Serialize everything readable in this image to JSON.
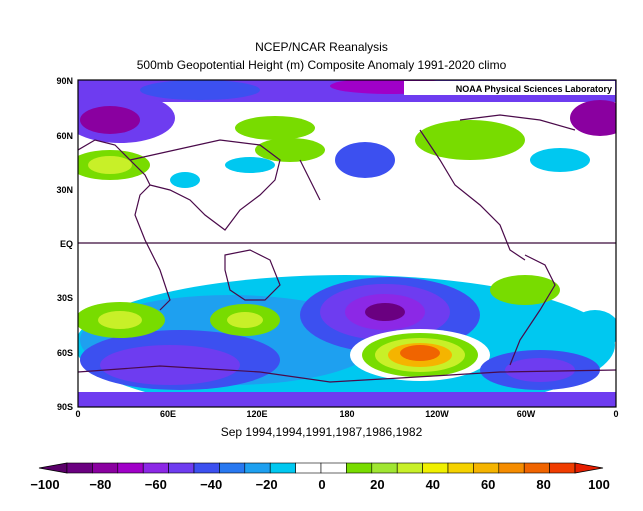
{
  "title_line1": "NCEP/NCAR Reanalysis",
  "title_line2": "500mb Geopotential Height (m) Composite Anomaly 1991-2020 climo",
  "credit": "NOAA Physical Sciences Laboratory",
  "subtitle": "Sep 1994,1994,1991,1987,1986,1982",
  "lat_labels": [
    "90N",
    "60N",
    "30N",
    "EQ",
    "30S",
    "60S",
    "90S"
  ],
  "lon_labels": [
    "0",
    "60E",
    "120E",
    "180",
    "120W",
    "60W",
    "0"
  ],
  "colorbar": {
    "tick_labels": [
      "-100",
      "-80",
      "-60",
      "-40",
      "-20",
      "0",
      "20",
      "40",
      "60",
      "80",
      "100"
    ],
    "colors": [
      "#6a0080",
      "#8a00a0",
      "#a000c8",
      "#8c28e6",
      "#6e3cf0",
      "#3c50f0",
      "#2878f0",
      "#1ea0f0",
      "#00c8f0",
      "#ffffff",
      "#ffffff",
      "#78dc00",
      "#a0e632",
      "#c8f028",
      "#f0f000",
      "#f5d200",
      "#f5b400",
      "#f58c00",
      "#f06400",
      "#f03c00"
    ],
    "under_color": "#5a0069",
    "over_color": "#e61e00"
  }
}
